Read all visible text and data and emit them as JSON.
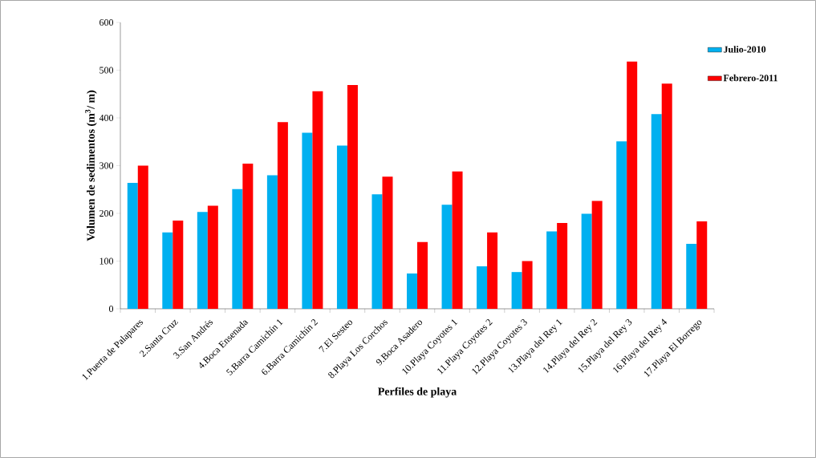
{
  "chart_data": {
    "type": "bar",
    "xlabel": "Perfiles de playa",
    "ylabel": "Volumen de sedimentos (m$^{3}$/ m)",
    "categories": [
      "1.Puerta de Palapares",
      "2.Santa Cruz",
      "3.San Andrés",
      "4.Boca Ensenada",
      "5.Barra Camichín 1",
      "6.Barra Camichín 2",
      "7.El Sesteo",
      "8.Playa Los Corchos",
      "9.Boca Asadero",
      "10.Playa Coyotes 1",
      "11.Playa Coyotes 2",
      "12.Playa Coyotes 3",
      "13.Playa del Rey 1",
      "14.Playa del Rey 2",
      "15.Playa del Rey 3",
      "16.Playa del Rey 4",
      "17.Playa El Borrego"
    ],
    "series": [
      {
        "name": "Julio-2010",
        "color": "#00b0f0",
        "values": [
          264,
          160,
          203,
          251,
          280,
          369,
          342,
          240,
          74,
          218,
          89,
          77,
          162,
          199,
          351,
          408,
          136
        ]
      },
      {
        "name": "Febrero-2011",
        "color": "#ff0000",
        "values": [
          300,
          185,
          216,
          304,
          391,
          456,
          469,
          277,
          140,
          288,
          160,
          100,
          180,
          226,
          518,
          472,
          183
        ]
      }
    ],
    "ylim": [
      0,
      600
    ],
    "yticks": [
      0,
      100,
      200,
      300,
      400,
      500,
      600
    ],
    "grid": false,
    "legend": "right"
  }
}
